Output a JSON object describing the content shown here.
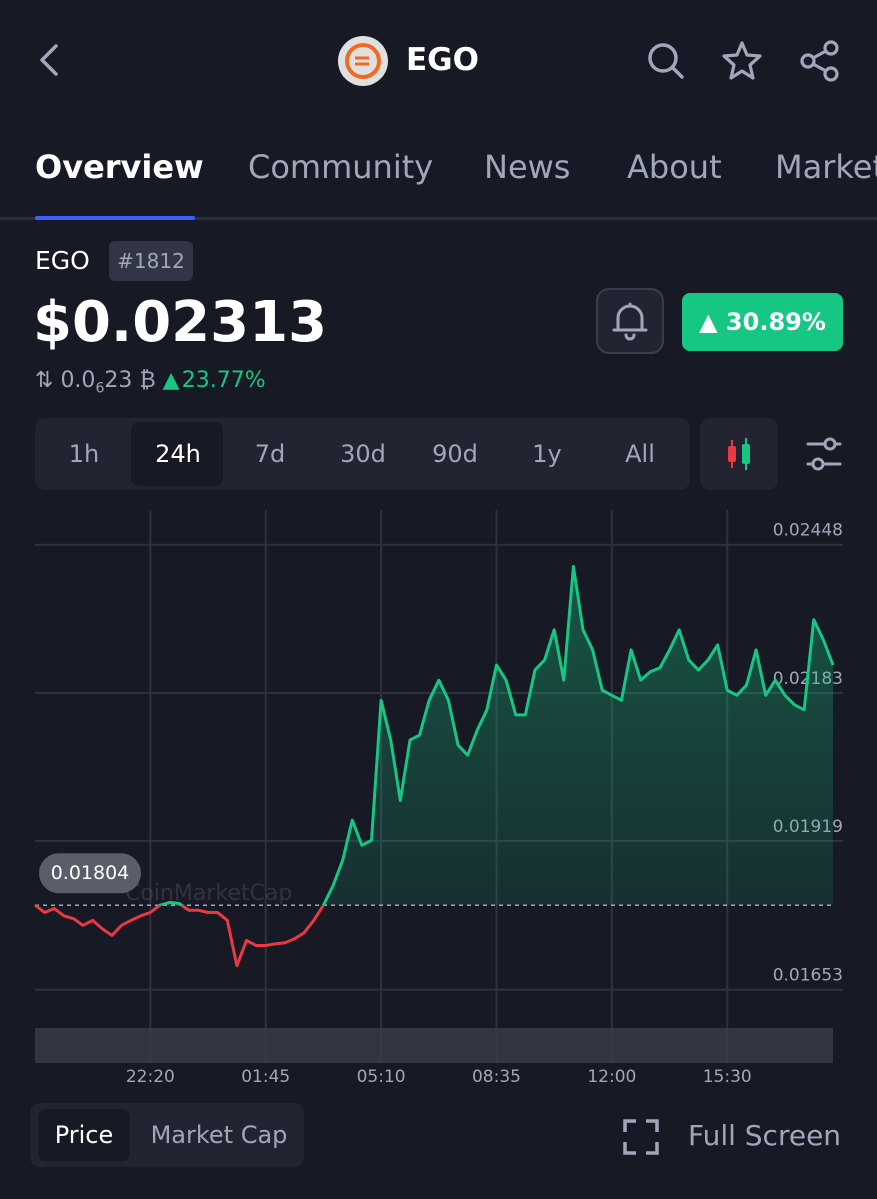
{
  "header": {
    "title": "EGO"
  },
  "tabs": [
    "Overview",
    "Community",
    "News",
    "About",
    "Markets"
  ],
  "coin": {
    "symbol": "EGO",
    "rank": "#1812",
    "price": "$0.02313",
    "change_24h": "30.89%",
    "btc_price": {
      "prefix": "0.0",
      "zeros": "6",
      "digits": "23",
      "unit": "₿"
    },
    "btc_change": "23.77%"
  },
  "ranges": [
    "1h",
    "24h",
    "7d",
    "30d",
    "90d",
    "1y",
    "All"
  ],
  "chart": {
    "type": "line",
    "watermark": "CoinMarketCap",
    "baseline": 0.01804,
    "up_color": "#16c784",
    "down_color": "#ea3943",
    "values": [
      0.01804,
      0.01791,
      0.01798,
      0.01785,
      0.0178,
      0.01768,
      0.01777,
      0.01762,
      0.0175,
      0.01768,
      0.01777,
      0.01785,
      0.01791,
      0.01804,
      0.01809,
      0.01807,
      0.01795,
      0.01795,
      0.01791,
      0.01791,
      0.01777,
      0.01696,
      0.01741,
      0.01732,
      0.01732,
      0.01735,
      0.01737,
      0.01744,
      0.01755,
      0.01777,
      0.01804,
      0.01839,
      0.01884,
      0.01956,
      0.01911,
      0.0192,
      0.0217,
      0.02099,
      0.01991,
      0.02099,
      0.02108,
      0.0217,
      0.02206,
      0.0217,
      0.0209,
      0.02072,
      0.02117,
      0.02153,
      0.02233,
      0.02206,
      0.02144,
      0.02144,
      0.02224,
      0.02242,
      0.02296,
      0.02206,
      0.02409,
      0.02296,
      0.0226,
      0.02188,
      0.02179,
      0.0217,
      0.0226,
      0.02206,
      0.02221,
      0.02228,
      0.0226,
      0.02296,
      0.02242,
      0.02224,
      0.02242,
      0.02269,
      0.02188,
      0.02179,
      0.02197,
      0.0226,
      0.02179,
      0.02206,
      0.02179,
      0.02162,
      0.02153,
      0.02314,
      0.02278,
      0.02233
    ],
    "xlim": [
      0,
      83
    ],
    "xticks": [
      {
        "value": 12,
        "label": "22:20"
      },
      {
        "value": 24,
        "label": "01:45"
      },
      {
        "value": 36,
        "label": "05:10"
      },
      {
        "value": 48,
        "label": "08:35"
      },
      {
        "value": 60,
        "label": "12:00"
      },
      {
        "value": 72,
        "label": "15:30"
      }
    ],
    "ylim": [
      0.0159,
      0.0251
    ],
    "yticks": [
      0.02448,
      0.02183,
      0.01919,
      0.01653
    ],
    "grid": true
  },
  "footer": {
    "modes": [
      "Price",
      "Market Cap"
    ],
    "fullscreen": "Full Screen"
  }
}
